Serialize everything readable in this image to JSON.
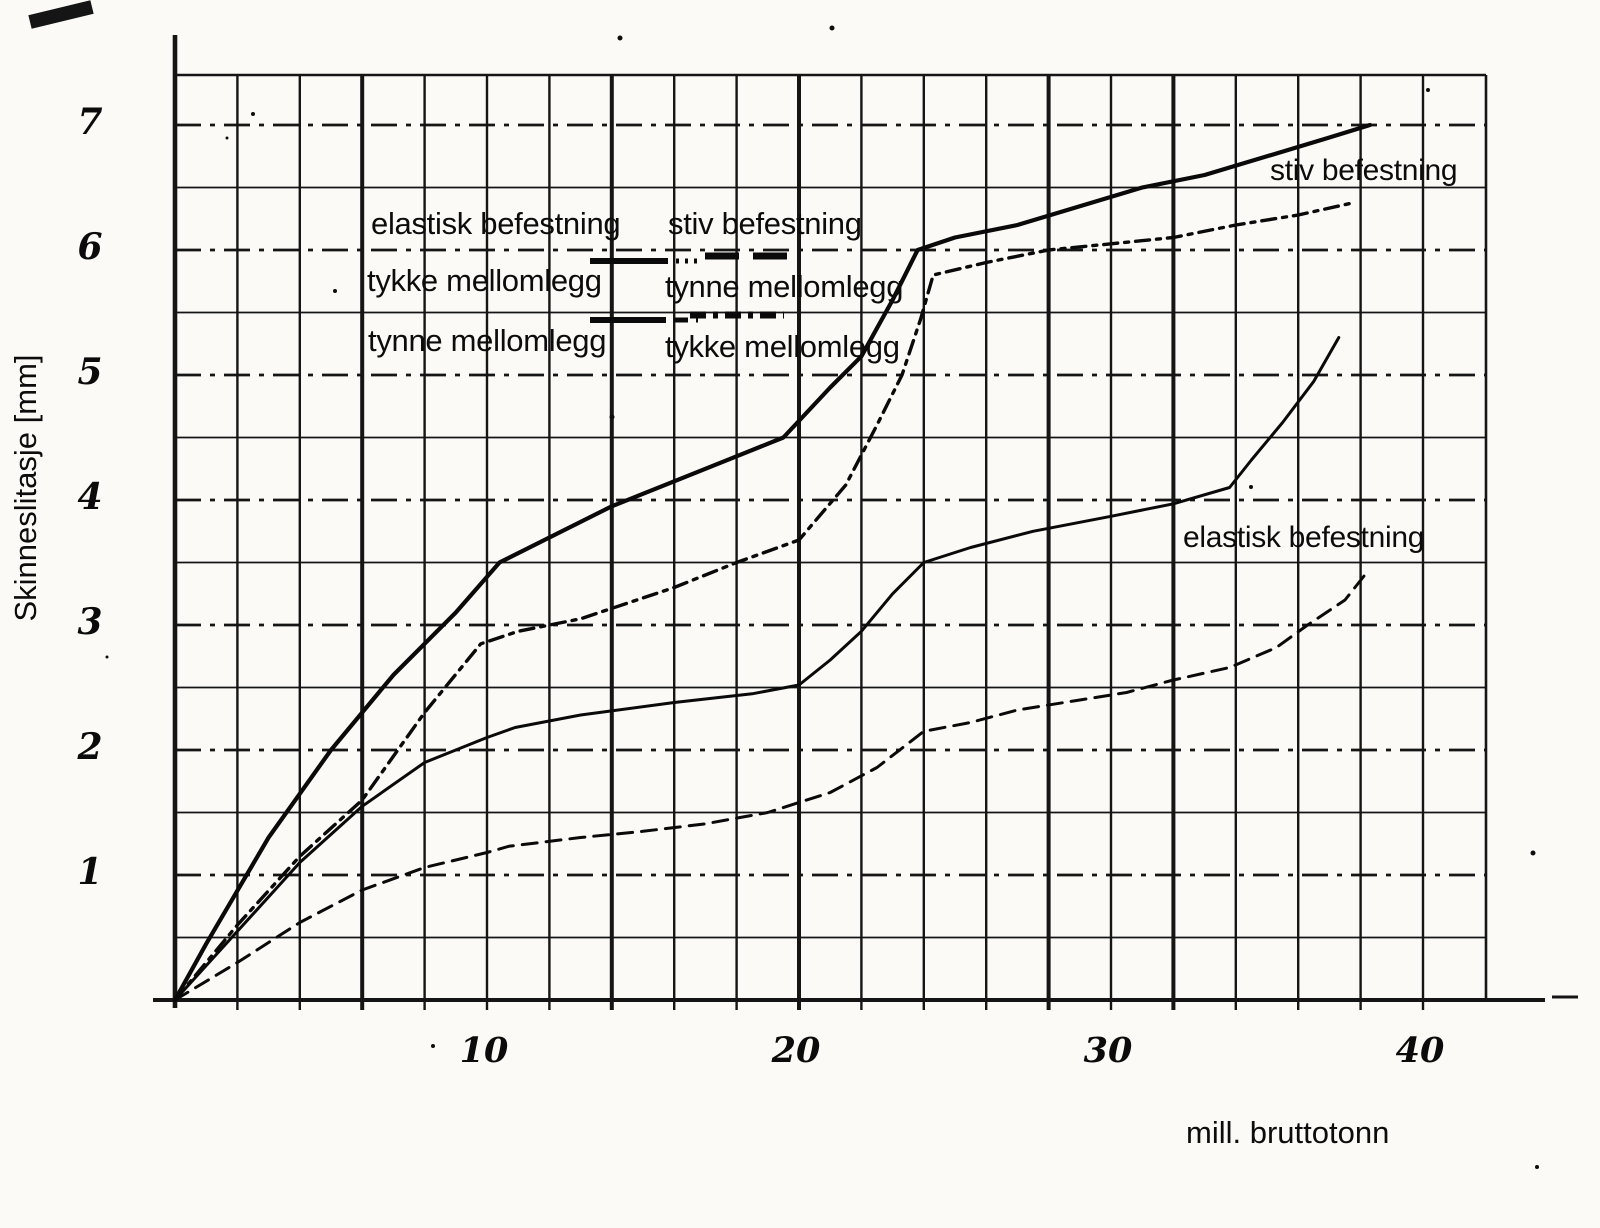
{
  "colors": {
    "ink": "#0d0d0d",
    "paper": "#fbfaf6",
    "curve": "#0a0a0a",
    "grid": "#151515"
  },
  "chart_data": {
    "type": "line",
    "title": "",
    "xlabel": "mill. bruttotonn",
    "ylabel": "Skinneslitasje [mm]",
    "xlim": [
      0,
      42
    ],
    "ylim": [
      0,
      7.4
    ],
    "x_ticks": [
      10,
      20,
      30,
      40
    ],
    "y_ticks": [
      7,
      6,
      5,
      4,
      3,
      2,
      1
    ],
    "grid": {
      "x_step": 2,
      "y_minor_step": 0.5,
      "y_major_step": 1,
      "major_horizontal_style": "dash-dot",
      "minor_horizontal_style": "solid"
    },
    "legend_position": "top-left-inside",
    "series": [
      {
        "id": "stiv-tynne",
        "name": "stiv befestning – tynne mellomlegg",
        "style": "solid-thick",
        "points": [
          [
            0,
            0
          ],
          [
            1,
            0.45
          ],
          [
            3,
            1.3
          ],
          [
            5,
            2.0
          ],
          [
            7,
            2.6
          ],
          [
            9,
            3.1
          ],
          [
            10.4,
            3.5
          ],
          [
            12,
            3.7
          ],
          [
            14,
            3.95
          ],
          [
            16,
            4.15
          ],
          [
            18,
            4.35
          ],
          [
            19.5,
            4.5
          ],
          [
            21,
            4.9
          ],
          [
            22,
            5.15
          ],
          [
            23,
            5.6
          ],
          [
            23.8,
            6.0
          ],
          [
            25,
            6.1
          ],
          [
            27,
            6.2
          ],
          [
            29,
            6.35
          ],
          [
            31,
            6.5
          ],
          [
            33,
            6.6
          ],
          [
            35,
            6.75
          ],
          [
            37,
            6.9
          ],
          [
            38.3,
            7.0
          ]
        ]
      },
      {
        "id": "stiv-tykke",
        "name": "stiv befestning – tykke mellomlegg",
        "style": "dash-dot",
        "points": [
          [
            0,
            0
          ],
          [
            2,
            0.6
          ],
          [
            4,
            1.15
          ],
          [
            6,
            1.6
          ],
          [
            8,
            2.3
          ],
          [
            9.8,
            2.85
          ],
          [
            11,
            2.95
          ],
          [
            13,
            3.05
          ],
          [
            16,
            3.3
          ],
          [
            18,
            3.5
          ],
          [
            20,
            3.68
          ],
          [
            21.5,
            4.12
          ],
          [
            22.5,
            4.6
          ],
          [
            23.3,
            5.0
          ],
          [
            23.9,
            5.45
          ],
          [
            24.3,
            5.8
          ],
          [
            26,
            5.9
          ],
          [
            28,
            6.0
          ],
          [
            30,
            6.05
          ],
          [
            32,
            6.1
          ],
          [
            34,
            6.2
          ],
          [
            36,
            6.28
          ],
          [
            37.8,
            6.38
          ]
        ]
      },
      {
        "id": "elastisk-tynne",
        "name": "elastisk befestning – tynne mellomlegg",
        "style": "solid",
        "points": [
          [
            0,
            0
          ],
          [
            2,
            0.55
          ],
          [
            4,
            1.1
          ],
          [
            6,
            1.55
          ],
          [
            8,
            1.9
          ],
          [
            10,
            2.1
          ],
          [
            10.9,
            2.18
          ],
          [
            13,
            2.28
          ],
          [
            16,
            2.38
          ],
          [
            18.5,
            2.45
          ],
          [
            20,
            2.52
          ],
          [
            21,
            2.72
          ],
          [
            22,
            2.95
          ],
          [
            23,
            3.25
          ],
          [
            24,
            3.5
          ],
          [
            25.5,
            3.62
          ],
          [
            27.5,
            3.75
          ],
          [
            30,
            3.87
          ],
          [
            32,
            3.97
          ],
          [
            33.8,
            4.1
          ],
          [
            34.5,
            4.32
          ],
          [
            35.5,
            4.62
          ],
          [
            36.5,
            4.95
          ],
          [
            37.3,
            5.3
          ]
        ]
      },
      {
        "id": "elastisk-tykke",
        "name": "elastisk befestning – tykke mellomlegg",
        "style": "dashed",
        "points": [
          [
            0,
            0
          ],
          [
            2,
            0.3
          ],
          [
            4,
            0.62
          ],
          [
            6,
            0.88
          ],
          [
            8,
            1.06
          ],
          [
            10,
            1.18
          ],
          [
            10.7,
            1.23
          ],
          [
            13,
            1.3
          ],
          [
            15,
            1.35
          ],
          [
            17,
            1.41
          ],
          [
            19,
            1.5
          ],
          [
            21,
            1.66
          ],
          [
            22.5,
            1.86
          ],
          [
            24,
            2.15
          ],
          [
            25.5,
            2.22
          ],
          [
            27,
            2.32
          ],
          [
            29,
            2.4
          ],
          [
            30.5,
            2.46
          ],
          [
            32,
            2.56
          ],
          [
            33.8,
            2.66
          ],
          [
            35.3,
            2.82
          ],
          [
            36.3,
            3.0
          ],
          [
            37.5,
            3.2
          ],
          [
            38.2,
            3.42
          ]
        ]
      }
    ],
    "annotations": [
      {
        "text": "stiv befestning",
        "x": 35.2,
        "y": 6.6
      },
      {
        "text": "elastisk befestning",
        "x": 32.4,
        "y": 3.7
      }
    ]
  },
  "legend": {
    "columns": [
      {
        "header": "elastisk befestning",
        "items": [
          {
            "label": "tykke mellomlegg",
            "line_style": "solid"
          },
          {
            "label": "tynne mellomlegg",
            "line_style": "solid"
          }
        ]
      },
      {
        "header": "stiv befestning",
        "items": [
          {
            "label": "tynne mellomlegg",
            "line_style": "long-dash"
          },
          {
            "label": "tykke mellomlegg",
            "line_style": "dash-dot"
          }
        ]
      }
    ]
  }
}
